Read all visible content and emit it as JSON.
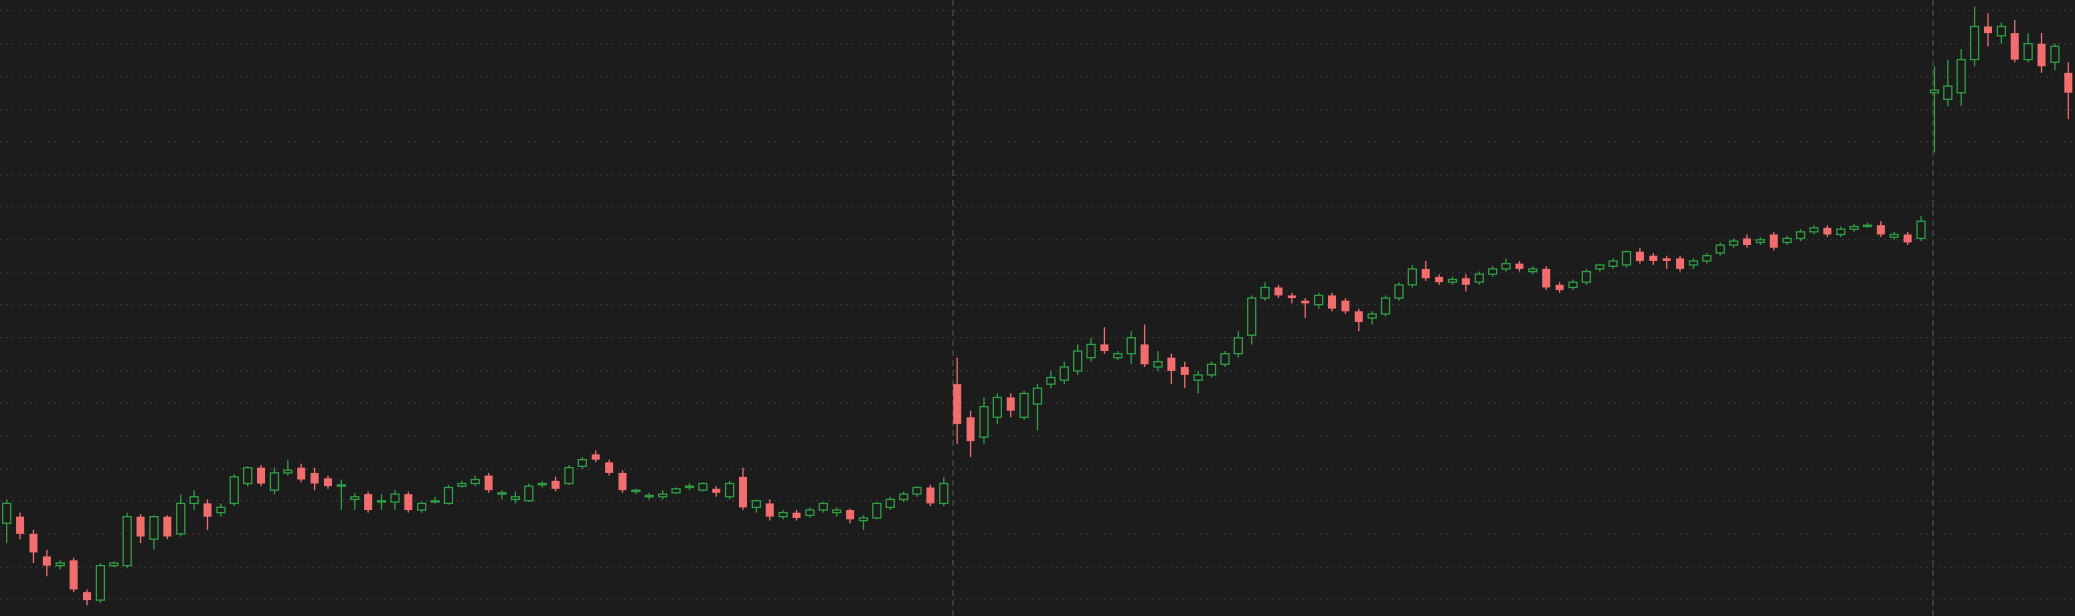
{
  "chart_data": {
    "type": "candlestick",
    "up_color": "#2f9e44",
    "down_color": "#f26d6d",
    "grid": true,
    "ylim": [
      0,
      465
    ],
    "yticks": [
      13,
      37,
      62,
      87,
      111,
      136,
      161,
      185,
      210,
      235,
      259,
      284,
      309,
      333,
      358,
      382,
      407,
      432,
      457
    ],
    "series": {
      "open": [
        70,
        75,
        62,
        45,
        38,
        42,
        18,
        12,
        38,
        38,
        75,
        58,
        75,
        62,
        85,
        85,
        78,
        85,
        100,
        112,
        95,
        108,
        112,
        108,
        104,
        98,
        88,
        92,
        86,
        86,
        92,
        80,
        86,
        85,
        98,
        100,
        106,
        92,
        88,
        87,
        99,
        102,
        100,
        113,
        122,
        116,
        108,
        94,
        90,
        90,
        93,
        97,
        95,
        96,
        90,
        105,
        82,
        85,
        75,
        78,
        76,
        80,
        78,
        80,
        72,
        74,
        82,
        88,
        92,
        97,
        85,
        175,
        150,
        135,
        150,
        165,
        150,
        160,
        175,
        178,
        185,
        195,
        205,
        195,
        198,
        205,
        188,
        195,
        188,
        178,
        182,
        190,
        198,
        212,
        240,
        248,
        242,
        238,
        235,
        242,
        238,
        230,
        225,
        228,
        240,
        250,
        262,
        256,
        252,
        255,
        252,
        258,
        262,
        266,
        260,
        262,
        250,
        248,
        252,
        262,
        264,
        265,
        275,
        272,
        270,
        270,
        265,
        268,
        274,
        280,
        285,
        282,
        288,
        282,
        285,
        290,
        293,
        288,
        292,
        294,
        295,
        286,
        288,
        285,
        395,
        390,
        395,
        420,
        445,
        438,
        440,
        420,
        432,
        418,
        410
      ],
      "high": [
        88,
        78,
        65,
        50,
        42,
        44,
        20,
        40,
        41,
        78,
        77,
        76,
        76,
        92,
        95,
        88,
        85,
        107,
        113,
        114,
        112,
        118,
        115,
        112,
        106,
        103,
        93,
        94,
        92,
        95,
        94,
        86,
        90,
        99,
        102,
        106,
        108,
        95,
        94,
        100,
        102,
        105,
        114,
        120,
        125,
        118,
        110,
        96,
        93,
        95,
        97,
        100,
        101,
        98,
        102,
        112,
        88,
        88,
        80,
        80,
        82,
        86,
        82,
        81,
        76,
        86,
        90,
        94,
        98,
        99,
        105,
        195,
        155,
        165,
        168,
        168,
        170,
        175,
        185,
        192,
        205,
        210,
        218,
        200,
        215,
        220,
        200,
        198,
        192,
        185,
        192,
        200,
        215,
        242,
        252,
        250,
        244,
        240,
        244,
        244,
        240,
        232,
        230,
        242,
        252,
        265,
        268,
        258,
        256,
        258,
        260,
        264,
        270,
        268,
        264,
        264,
        252,
        254,
        262,
        266,
        270,
        276,
        278,
        274,
        272,
        272,
        270,
        274,
        282,
        285,
        288,
        286,
        290,
        287,
        292,
        295,
        295,
        294,
        296,
        297,
        298,
        290,
        290,
        302,
        415,
        420,
        428,
        460,
        455,
        448,
        450,
        440,
        440,
        432,
        418
      ],
      "low": [
        55,
        58,
        40,
        30,
        35,
        18,
        8,
        10,
        37,
        36,
        55,
        50,
        58,
        60,
        80,
        65,
        75,
        83,
        98,
        98,
        92,
        106,
        101,
        95,
        96,
        80,
        80,
        78,
        80,
        80,
        78,
        78,
        85,
        84,
        97,
        98,
        93,
        88,
        85,
        86,
        97,
        94,
        99,
        111,
        116,
        106,
        93,
        92,
        88,
        88,
        92,
        95,
        94,
        90,
        88,
        80,
        78,
        72,
        73,
        72,
        74,
        78,
        75,
        70,
        65,
        73,
        80,
        86,
        90,
        83,
        83,
        130,
        120,
        130,
        145,
        150,
        148,
        140,
        172,
        175,
        182,
        192,
        198,
        193,
        190,
        188,
        185,
        175,
        172,
        168,
        180,
        188,
        195,
        205,
        238,
        240,
        236,
        225,
        232,
        230,
        228,
        215,
        220,
        226,
        238,
        248,
        253,
        250,
        250,
        245,
        250,
        256,
        260,
        260,
        258,
        246,
        244,
        246,
        250,
        260,
        262,
        263,
        266,
        265,
        262,
        260,
        262,
        266,
        272,
        278,
        278,
        280,
        276,
        280,
        283,
        288,
        286,
        286,
        290,
        293,
        286,
        284,
        280,
        283,
        350,
        385,
        385,
        415,
        430,
        432,
        418,
        418,
        410,
        412,
        375
      ],
      "close": [
        85,
        62,
        48,
        38,
        40,
        20,
        12,
        38,
        40,
        75,
        60,
        75,
        60,
        85,
        90,
        75,
        82,
        105,
        112,
        100,
        108,
        110,
        103,
        100,
        98,
        99,
        90,
        80,
        87,
        92,
        80,
        85,
        87,
        97,
        100,
        103,
        95,
        93,
        90,
        98,
        100,
        96,
        112,
        118,
        118,
        108,
        95,
        95,
        91,
        92,
        96,
        98,
        100,
        93,
        100,
        82,
        87,
        75,
        78,
        74,
        80,
        85,
        80,
        73,
        74,
        85,
        88,
        92,
        97,
        85,
        100,
        145,
        132,
        158,
        165,
        155,
        168,
        172,
        180,
        188,
        200,
        205,
        200,
        198,
        210,
        190,
        192,
        185,
        182,
        182,
        190,
        198,
        210,
        240,
        248,
        242,
        240,
        236,
        242,
        232,
        230,
        222,
        228,
        240,
        250,
        262,
        255,
        252,
        254,
        250,
        258,
        262,
        266,
        262,
        262,
        248,
        246,
        252,
        260,
        265,
        268,
        275,
        268,
        268,
        268,
        262,
        268,
        272,
        280,
        283,
        280,
        284,
        278,
        285,
        290,
        293,
        288,
        292,
        294,
        295,
        288,
        288,
        282,
        298,
        397,
        400,
        420,
        445,
        440,
        445,
        420,
        432,
        415,
        430,
        395
      ]
    }
  }
}
